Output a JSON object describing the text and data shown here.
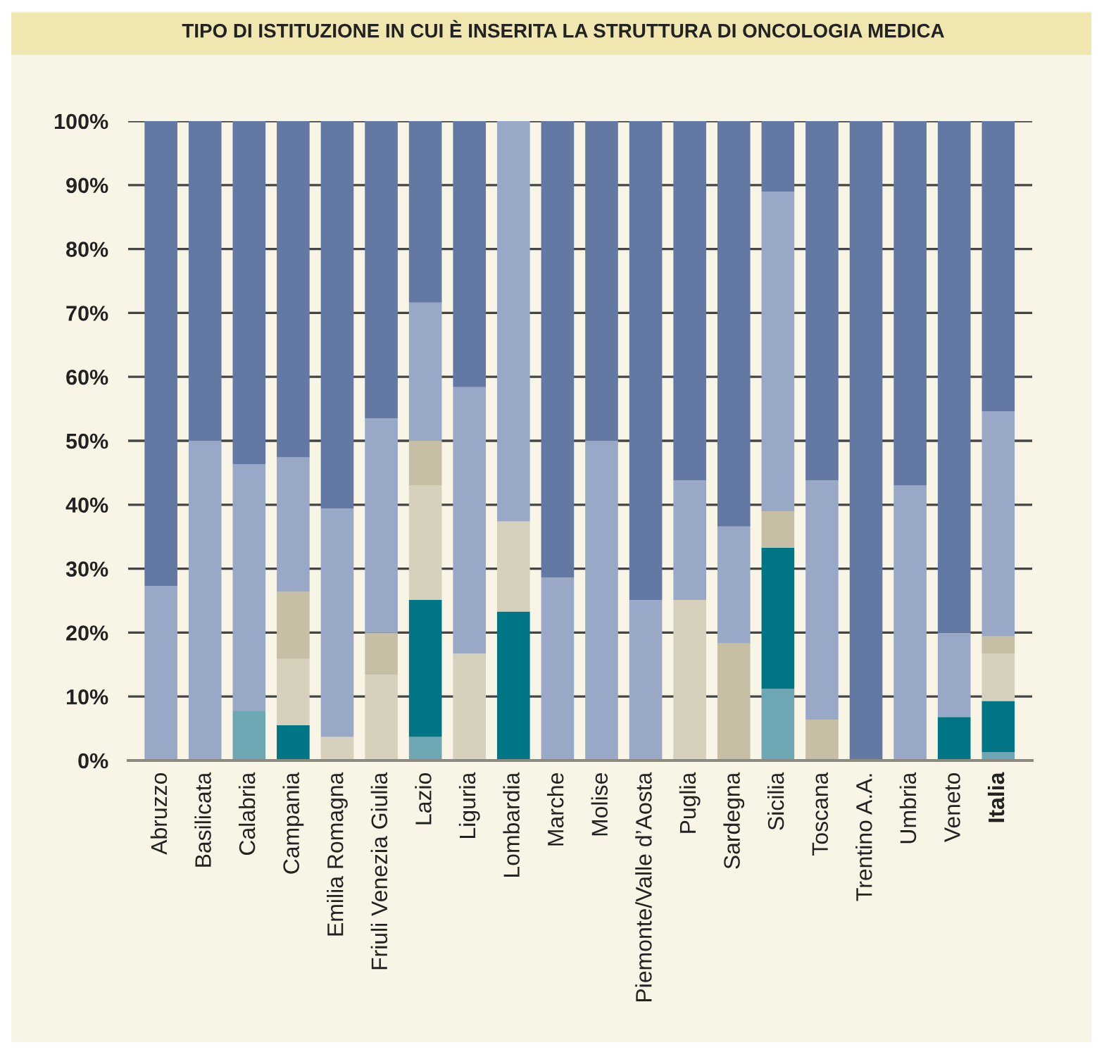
{
  "chart_data": {
    "type": "bar",
    "stacked": true,
    "title": "TIPO DI ISTITUZIONE IN CUI È INSERITA LA STRUTTURA DI ONCOLOGIA MEDICA",
    "categories": [
      "Abruzzo",
      "Basilicata",
      "Calabria",
      "Campania",
      "Emilia Romagna",
      "Friuli Venezia Giulia",
      "Lazio",
      "Liguria",
      "Lombardia",
      "Marche",
      "Molise",
      "Piemonte/Valle d’Aosta",
      "Puglia",
      "Sardegna",
      "Sicilia",
      "Toscana",
      "Trentino A.A.",
      "Umbria",
      "Veneto",
      "Italia"
    ],
    "series": [
      {
        "color": "#6fa6b4",
        "values": [
          null,
          null,
          7.7,
          null,
          null,
          null,
          3.7,
          null,
          null,
          null,
          null,
          null,
          null,
          null,
          11.2,
          null,
          null,
          null,
          null,
          1.3
        ]
      },
      {
        "color": "#007585",
        "values": [
          null,
          null,
          null,
          5.5,
          null,
          null,
          21.4,
          null,
          23.3,
          null,
          null,
          null,
          null,
          null,
          22.1,
          null,
          null,
          null,
          6.8,
          8.0
        ]
      },
      {
        "color": "#d6d0bc",
        "values": [
          null,
          null,
          null,
          10.4,
          3.7,
          13.4,
          17.9,
          16.7,
          14.1,
          null,
          null,
          null,
          25.1,
          null,
          null,
          null,
          null,
          null,
          null,
          7.4
        ]
      },
      {
        "color": "#c6bfa6",
        "values": [
          null,
          null,
          null,
          10.5,
          null,
          6.6,
          7.0,
          null,
          null,
          null,
          null,
          null,
          null,
          18.3,
          5.7,
          6.4,
          null,
          null,
          null,
          2.7
        ]
      },
      {
        "color": "#9aa8c8",
        "values": [
          27.3,
          50.0,
          38.6,
          21.0,
          35.7,
          33.5,
          21.6,
          41.7,
          62.6,
          28.6,
          50.0,
          25.1,
          18.7,
          18.3,
          50.0,
          37.4,
          null,
          43.0,
          13.2,
          35.2
        ]
      },
      {
        "color": "#6378a2",
        "values": [
          72.7,
          50.0,
          53.7,
          52.6,
          60.6,
          46.5,
          28.4,
          41.6,
          null,
          71.4,
          50.0,
          74.9,
          56.2,
          63.4,
          11.0,
          56.2,
          100.0,
          57.0,
          80.0,
          45.4
        ]
      }
    ],
    "ylim": [
      0,
      100
    ],
    "yticks": [
      {
        "value": 0,
        "label": "0%"
      },
      {
        "value": 10,
        "label": "10%"
      },
      {
        "value": 20,
        "label": "20%"
      },
      {
        "value": 30,
        "label": "30%"
      },
      {
        "value": 40,
        "label": "40%"
      },
      {
        "value": 50,
        "label": "50%"
      },
      {
        "value": 60,
        "label": "60%"
      },
      {
        "value": 70,
        "label": "70%"
      },
      {
        "value": 80,
        "label": "80%"
      },
      {
        "value": 90,
        "label": "90%"
      },
      {
        "value": 100,
        "label": "100%"
      }
    ],
    "grid": "y"
  }
}
